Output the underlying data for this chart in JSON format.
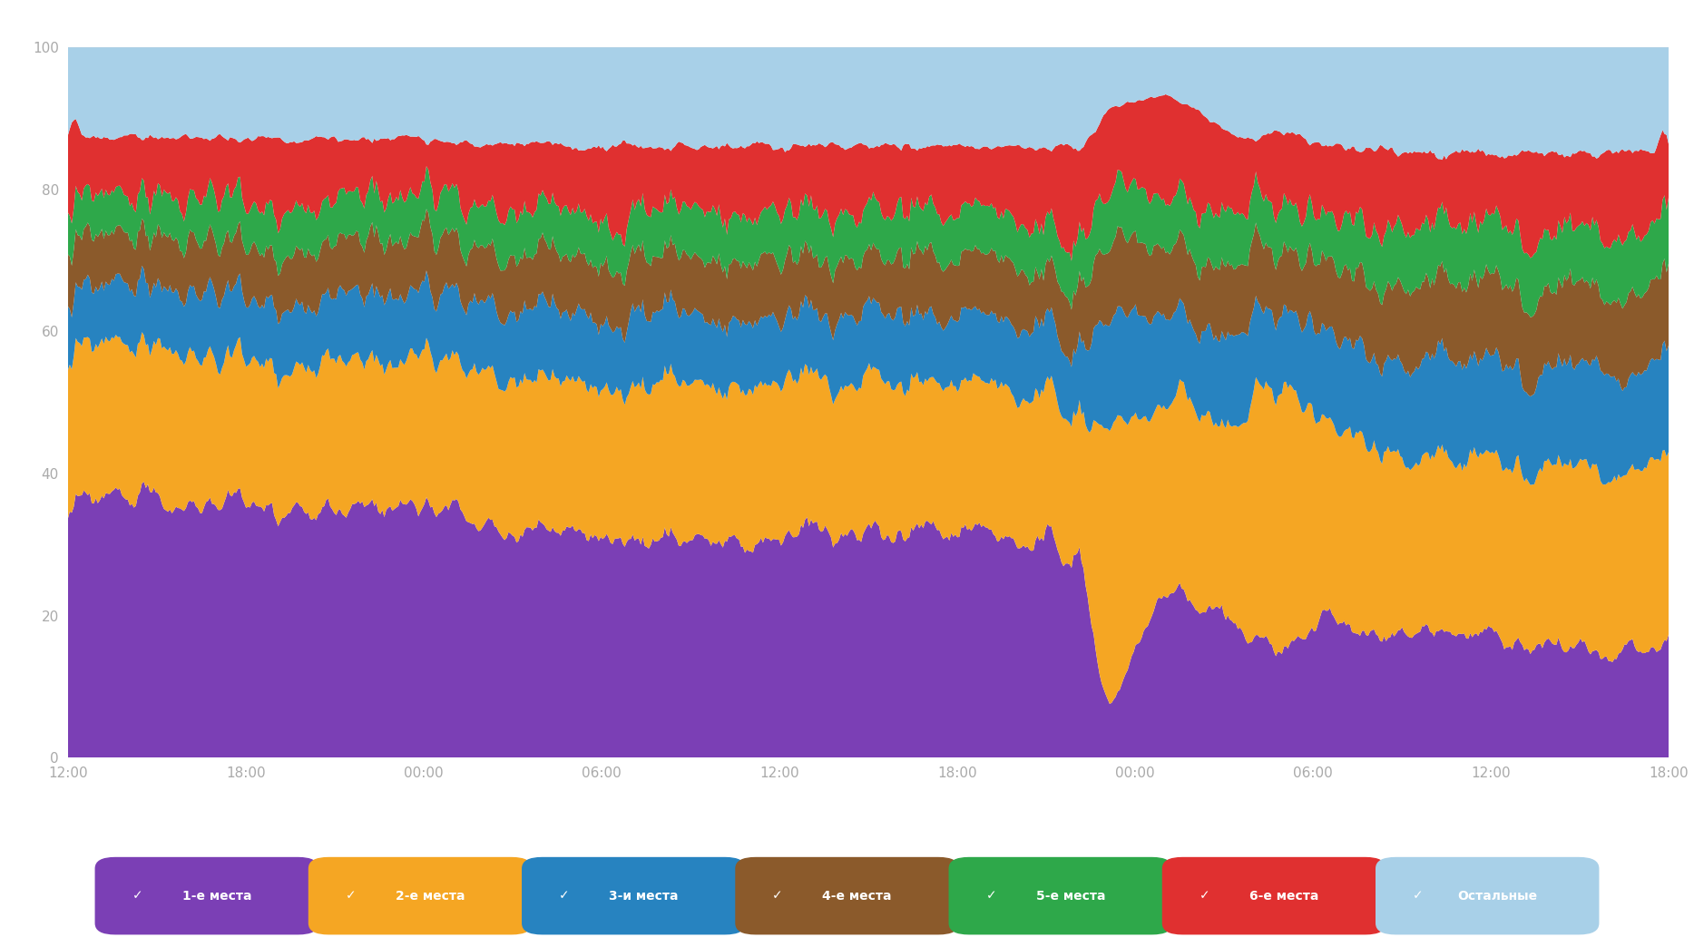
{
  "colors": {
    "purple": "#7B3FB5",
    "orange": "#F5A623",
    "blue": "#2783C0",
    "brown": "#8B5A2B",
    "green": "#2EA84A",
    "red": "#E03030",
    "lightblue": "#A8D0E8"
  },
  "legend_labels": [
    "1-е места",
    "2-е места",
    "3-и места",
    "4-е места",
    "5-е места",
    "6-е места",
    "Остальные"
  ],
  "legend_colors": [
    "#7B3FB5",
    "#F5A623",
    "#2783C0",
    "#8B5A2B",
    "#2EA84A",
    "#E03030",
    "#A8D0E8"
  ],
  "yticks": [
    0,
    20,
    40,
    60,
    80,
    100
  ],
  "xtick_labels": [
    "12:00",
    "18:00",
    "00:00",
    "06:00",
    "12:00",
    "18:00",
    "00:00",
    "06:00",
    "12:00",
    "18:00"
  ],
  "background_color": "#FFFFFF",
  "n_points": 800
}
